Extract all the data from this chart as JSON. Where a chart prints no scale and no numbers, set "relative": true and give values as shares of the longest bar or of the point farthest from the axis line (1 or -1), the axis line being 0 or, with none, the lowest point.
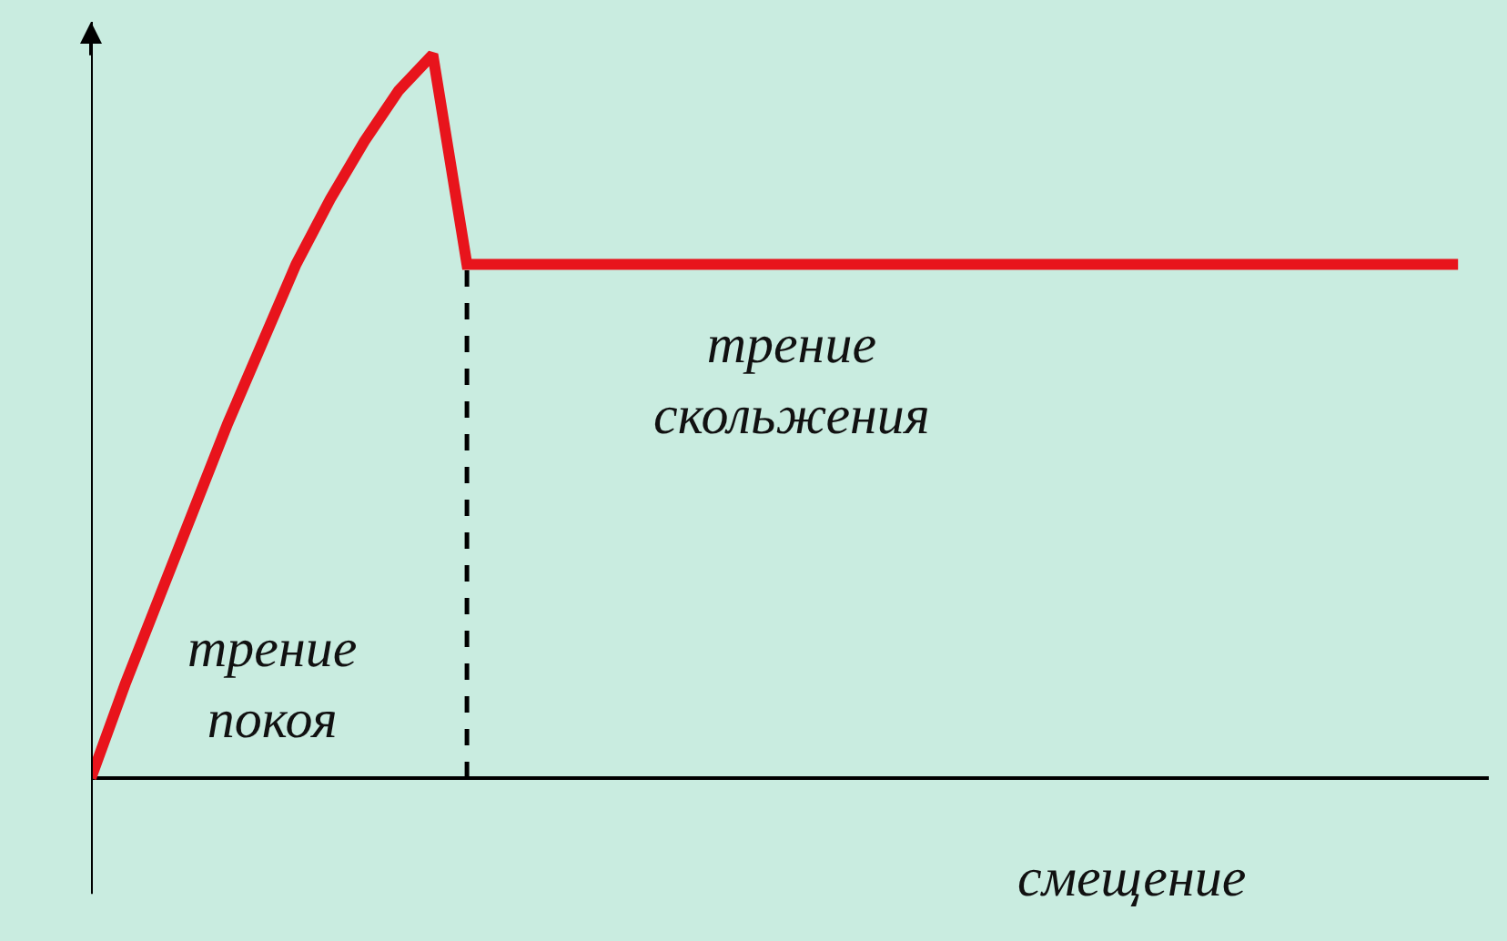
{
  "chart_data": {
    "type": "line",
    "relative": true,
    "categories": [
      null,
      null,
      null,
      null,
      null,
      null,
      null,
      null,
      null,
      null,
      null,
      null,
      null,
      null,
      null,
      null,
      null,
      null,
      null,
      null,
      null,
      null,
      null,
      null,
      null,
      null,
      null,
      null,
      null,
      null,
      null,
      null,
      null,
      null,
      null,
      null,
      null,
      null,
      null,
      null,
      null
    ],
    "series": [
      {
        "color": "#e8141c",
        "values": [
          0,
          0.13,
          0.25,
          0.37,
          0.49,
          0.6,
          0.71,
          0.8,
          0.88,
          0.95,
          1.0,
          0.71,
          0.71,
          0.71,
          0.71,
          0.71,
          0.71,
          0.71,
          0.71,
          0.71,
          0.71,
          0.71,
          0.71,
          0.71,
          0.71,
          0.71,
          0.71,
          0.71,
          0.71,
          0.71,
          0.71,
          0.71,
          0.71,
          0.71,
          0.71,
          0.71,
          0.71,
          0.71,
          0.71,
          0.71,
          0.71
        ]
      }
    ],
    "xlabel": "смещение",
    "annotations": [
      "трение\nпокоя",
      "трение\nскольжения"
    ],
    "grid": false,
    "legend": false,
    "marker": "none",
    "line_style": "solid",
    "tick_labels": false
  }
}
